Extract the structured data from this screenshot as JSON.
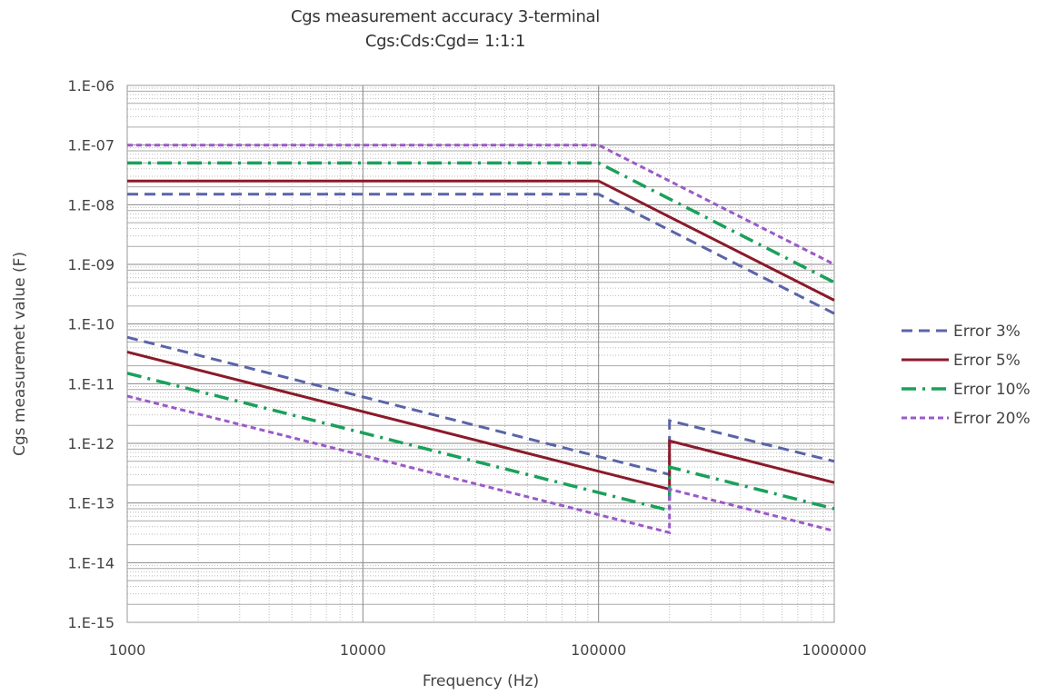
{
  "chart_data": {
    "type": "line",
    "title": "Cgs measurement accuracy  3-terminal",
    "subtitle": "Cgs:Cds:Cgd= 1:1:1",
    "xlabel": "Frequency (Hz)",
    "ylabel": "Cgs measuremet value (F)",
    "xscale": "log",
    "yscale": "log",
    "xlim": [
      1000,
      1000000
    ],
    "ylim": [
      1e-15,
      1e-06
    ],
    "grid": true,
    "legend_position": "right",
    "x_ticks": [
      {
        "value": 1000,
        "label": "1000"
      },
      {
        "value": 10000,
        "label": "10000"
      },
      {
        "value": 100000,
        "label": "100000"
      },
      {
        "value": 1000000,
        "label": "1000000"
      }
    ],
    "y_ticks": [
      {
        "value": 1e-06,
        "label": "1.E-06"
      },
      {
        "value": 1e-07,
        "label": "1.E-07"
      },
      {
        "value": 1e-08,
        "label": "1.E-08"
      },
      {
        "value": 1e-09,
        "label": "1.E-09"
      },
      {
        "value": 1e-10,
        "label": "1.E-10"
      },
      {
        "value": 1e-11,
        "label": "1.E-11"
      },
      {
        "value": 1e-12,
        "label": "1.E-12"
      },
      {
        "value": 1e-13,
        "label": "1.E-13"
      },
      {
        "value": 1e-14,
        "label": "1.E-14"
      },
      {
        "value": 1e-15,
        "label": "1.E-15"
      }
    ],
    "series": [
      {
        "name": "Error 3%",
        "color": "#5a64a8",
        "style": "dashed",
        "upper": [
          [
            1000,
            1.5e-08
          ],
          [
            100000,
            1.5e-08
          ],
          [
            1000000,
            1.5e-10
          ]
        ],
        "lower": [
          [
            1000,
            6e-11
          ],
          [
            200000,
            3e-13
          ],
          [
            200000,
            2.4e-12
          ],
          [
            1000000,
            5e-13
          ]
        ]
      },
      {
        "name": "Error 5%",
        "color": "#8b1a2a",
        "style": "solid",
        "upper": [
          [
            1000,
            2.5e-08
          ],
          [
            100000,
            2.5e-08
          ],
          [
            1000000,
            2.5e-10
          ]
        ],
        "lower": [
          [
            1000,
            3.4e-11
          ],
          [
            200000,
            1.7e-13
          ],
          [
            200000,
            1.1e-12
          ],
          [
            1000000,
            2.2e-13
          ]
        ]
      },
      {
        "name": "Error 10%",
        "color": "#1aa05a",
        "style": "dashdot",
        "upper": [
          [
            1000,
            5e-08
          ],
          [
            100000,
            5e-08
          ],
          [
            1000000,
            5e-10
          ]
        ],
        "lower": [
          [
            1000,
            1.5e-11
          ],
          [
            200000,
            7.5e-14
          ],
          [
            200000,
            4e-13
          ],
          [
            1000000,
            8e-14
          ]
        ]
      },
      {
        "name": "Error 20%",
        "color": "#9b59c8",
        "style": "dotted",
        "upper": [
          [
            1000,
            1e-07
          ],
          [
            100000,
            1e-07
          ],
          [
            1000000,
            1e-09
          ]
        ],
        "lower": [
          [
            1000,
            6.2e-12
          ],
          [
            200000,
            3.2e-14
          ],
          [
            200000,
            1.7e-13
          ],
          [
            1000000,
            3.4e-14
          ]
        ]
      }
    ]
  }
}
